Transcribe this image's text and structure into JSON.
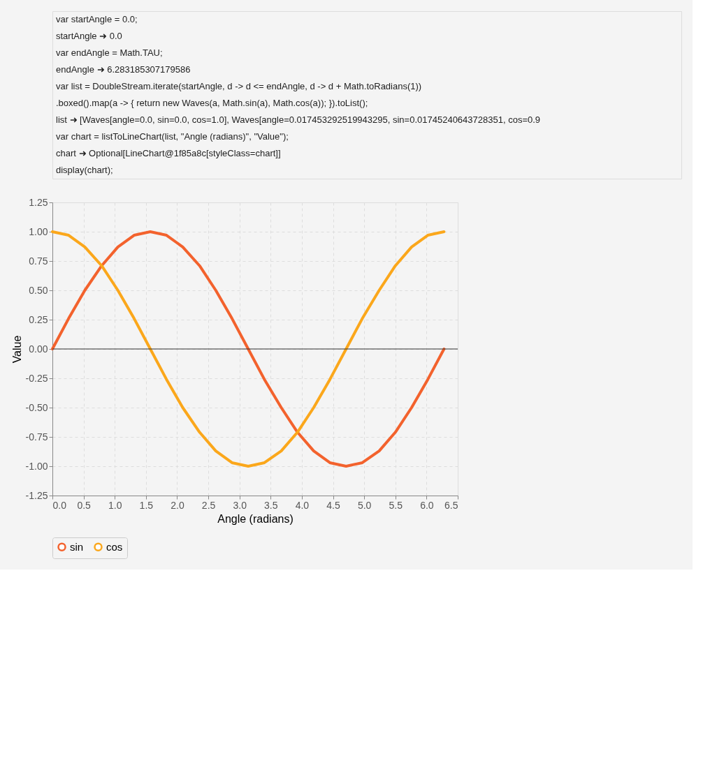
{
  "chart_data": {
    "type": "line",
    "annotations": [
      "var startAngle = 0.0;",
      "startAngle ➜ 0.0",
      "var endAngle = Math.TAU;",
      "endAngle ➜ 6.283185307179586",
      "var list = DoubleStream.iterate(startAngle, d -> d <= endAngle, d -> d + Math.toRadians(1))",
      "      .boxed().map(a -> { return new Waves(a, Math.sin(a), Math.cos(a)); }).toList();",
      "list ➜ [Waves[angle=0.0, sin=0.0, cos=1.0], Waves[angle=0.017453292519943295, sin=0.01745240643728351, cos=0.9",
      "var chart = listToLineChart(list, \"Angle (radians)\", \"Value\");",
      "chart ➜ Optional[LineChart@1f85a8c[styleClass=chart]]",
      "display(chart);"
    ],
    "xlabel": "Angle (radians)",
    "ylabel": "Value",
    "x": [
      0,
      0.26,
      0.52,
      0.79,
      1.05,
      1.31,
      1.57,
      1.83,
      2.09,
      2.36,
      2.62,
      2.88,
      3.14,
      3.4,
      3.67,
      3.93,
      4.19,
      4.45,
      4.71,
      4.97,
      5.24,
      5.5,
      5.76,
      6.02,
      6.28
    ],
    "series": [
      {
        "name": "sin",
        "color": "#f3622d",
        "values": [
          0,
          0.26,
          0.5,
          0.71,
          0.87,
          0.97,
          1,
          0.97,
          0.87,
          0.71,
          0.5,
          0.26,
          0,
          -0.26,
          -0.5,
          -0.71,
          -0.87,
          -0.97,
          -1,
          -0.97,
          -0.87,
          -0.71,
          -0.5,
          -0.26,
          0
        ]
      },
      {
        "name": "cos",
        "color": "#fba71b",
        "values": [
          1,
          0.97,
          0.87,
          0.71,
          0.5,
          0.26,
          0,
          -0.26,
          -0.5,
          -0.71,
          -0.87,
          -0.97,
          -1,
          -0.97,
          -0.87,
          -0.71,
          -0.5,
          -0.26,
          0,
          0.26,
          0.5,
          0.71,
          0.87,
          0.97,
          1
        ]
      }
    ],
    "xlim": [
      0,
      6.5
    ],
    "xticks": [
      {
        "value": 0,
        "label": "0.0"
      },
      0.5,
      {
        "value": 1,
        "label": "1.0"
      },
      1.5,
      {
        "value": 2,
        "label": "2.0"
      },
      2.5,
      {
        "value": 3,
        "label": "3.0"
      },
      3.5,
      {
        "value": 4,
        "label": "4.0"
      },
      4.5,
      {
        "value": 5,
        "label": "5.0"
      },
      5.5,
      {
        "value": 6,
        "label": "6.0"
      },
      6.5
    ],
    "ylim": [
      -1.25,
      1.25
    ],
    "yticks": [
      -1.25,
      {
        "value": -1,
        "label": "-1.00"
      },
      -0.75,
      {
        "value": -0.5,
        "label": "-0.50"
      },
      -0.25,
      {
        "value": 0,
        "label": "0.00"
      },
      0.25,
      {
        "value": 0.5,
        "label": "0.50"
      },
      0.75,
      {
        "value": 1,
        "label": "1.00"
      },
      1.25
    ],
    "ref_lines": [
      {
        "axis": "y",
        "value": 0,
        "color": "#333333"
      }
    ],
    "grid": true,
    "legend": "bottom",
    "marker": "none",
    "line_style": "solid"
  }
}
